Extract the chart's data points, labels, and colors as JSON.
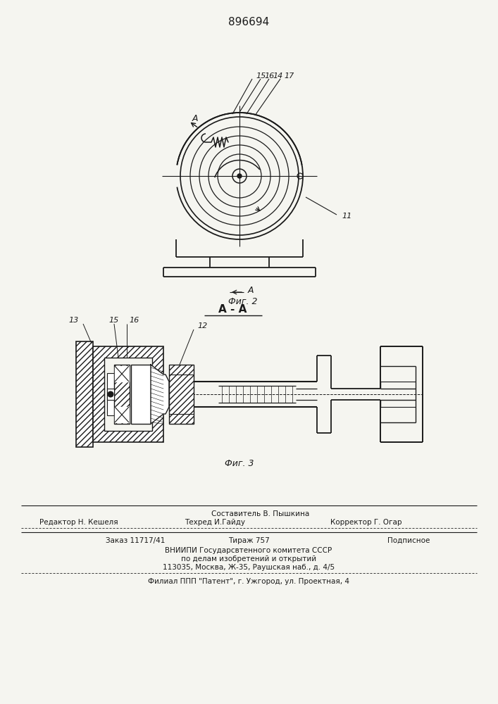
{
  "patent_number": "896694",
  "bg_color": "#f5f5f0",
  "line_color": "#1a1a1a",
  "fig2_label": "Фиг. 2",
  "fig3_label": "Фиг. 3",
  "section_label": "А - А",
  "footer": {
    "line1_above": "Составитель В. Пышкина",
    "line1_left": "Редактор Н. Кешеля",
    "line1_center": "Техред И.Гайду",
    "line1_right": "Корректор Г. Огар",
    "line2_left": "Заказ 11717/41",
    "line2_center": "Тираж 757",
    "line2_right": "Подписное",
    "line3": "ВНИИПИ Государсвтенного комитета СССР",
    "line4": "по делам изобретений и открытий",
    "line5": "113035, Москва, Ж-35, Раушская наб., д. 4/5",
    "line6": "Филиал ППП \"Патент\", г. Ужгород, ул. Проектная, 4"
  }
}
